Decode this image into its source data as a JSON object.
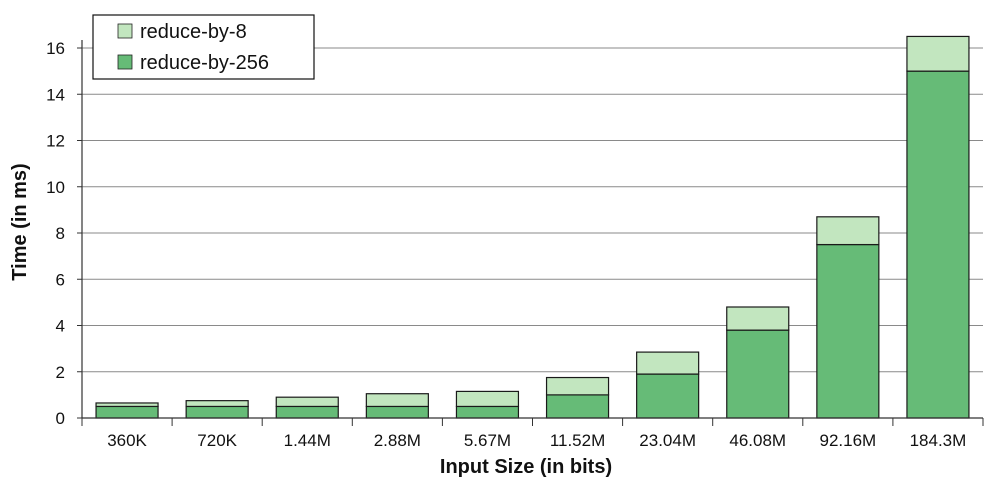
{
  "chart_data": {
    "type": "bar",
    "stacked": true,
    "categories": [
      "360K",
      "720K",
      "1.44M",
      "2.88M",
      "5.67M",
      "11.52M",
      "23.04M",
      "46.08M",
      "92.16M",
      "184.3M"
    ],
    "series": [
      {
        "name": "reduce-by-256",
        "values": [
          0.5,
          0.5,
          0.5,
          0.5,
          0.5,
          1.0,
          1.9,
          3.8,
          7.5,
          15.0
        ],
        "color": "#66bb77"
      },
      {
        "name": "reduce-by-8",
        "values": [
          0.15,
          0.25,
          0.4,
          0.55,
          0.65,
          0.75,
          0.95,
          1.0,
          1.2,
          1.5
        ],
        "color": "#c2e6bf"
      }
    ],
    "xlabel": "Input Size (in bits)",
    "ylabel": "Time (in ms)",
    "ylim": [
      0,
      16
    ],
    "yticks": [
      0,
      2,
      4,
      6,
      8,
      10,
      12,
      14,
      16
    ],
    "grid": true,
    "legend": {
      "position": "top-left",
      "entries": [
        "reduce-by-8",
        "reduce-by-256"
      ]
    }
  }
}
